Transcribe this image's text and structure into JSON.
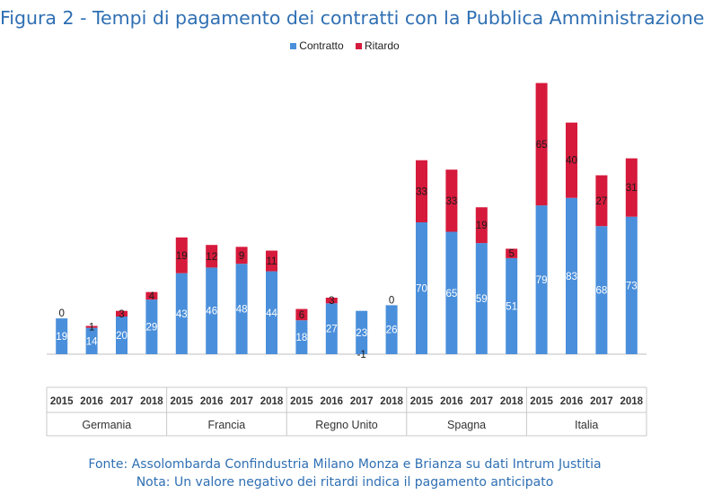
{
  "title": "Figura 2 - Tempi di pagamento dei contratti con la Pubblica Amministrazione",
  "colors": {
    "contratto": "#4a8fdb",
    "ritardo": "#d61a3c"
  },
  "chart_data": {
    "type": "bar",
    "stacked": true,
    "legend_position": "top",
    "grid": false,
    "groups": [
      {
        "name": "Germania",
        "years": [
          "2015",
          "2016",
          "2017",
          "2018"
        ]
      },
      {
        "name": "Francia",
        "years": [
          "2015",
          "2016",
          "2017",
          "2018"
        ]
      },
      {
        "name": "Regno Unito",
        "years": [
          "2015",
          "2016",
          "2017",
          "2018"
        ]
      },
      {
        "name": "Spagna",
        "years": [
          "2015",
          "2016",
          "2017",
          "2018"
        ]
      },
      {
        "name": "Italia",
        "years": [
          "2015",
          "2016",
          "2017",
          "2018"
        ]
      }
    ],
    "series": [
      {
        "name": "Contratto",
        "values": [
          19,
          14,
          20,
          29,
          43,
          46,
          48,
          44,
          18,
          27,
          23,
          26,
          70,
          65,
          59,
          51,
          79,
          83,
          68,
          73
        ]
      },
      {
        "name": "Ritardo",
        "values": [
          0,
          1,
          3,
          4,
          19,
          12,
          9,
          11,
          6,
          3,
          -1,
          0,
          33,
          33,
          19,
          5,
          65,
          40,
          27,
          31
        ]
      }
    ],
    "ylim": [
      -4,
      145
    ]
  },
  "footer": {
    "line1": "Fonte: Assolombarda Confindustria Milano Monza e Brianza su dati Intrum Justitia",
    "line2": "Nota: Un valore negativo dei ritardi indica il pagamento anticipato"
  }
}
